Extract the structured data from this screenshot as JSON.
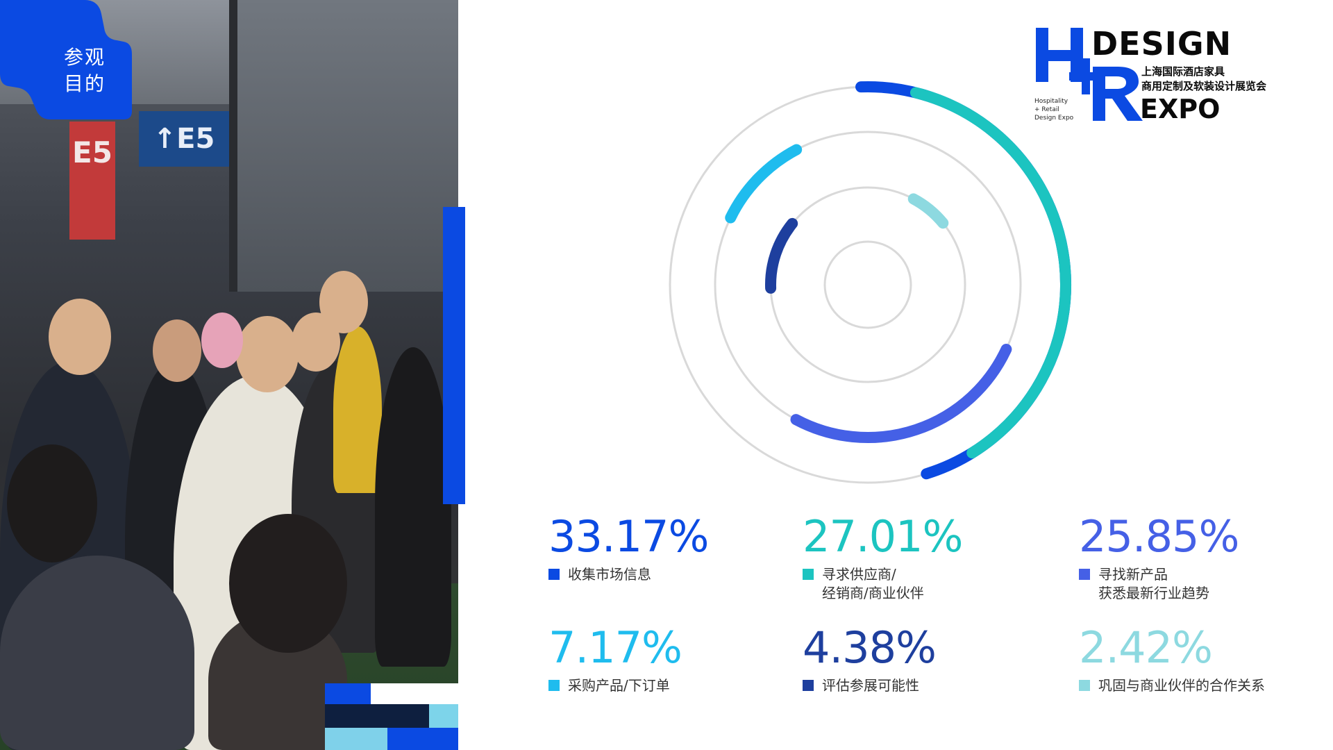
{
  "tag": {
    "line1": "参观",
    "line2": "目的",
    "color": "#0b4ae2"
  },
  "photo": {
    "sign_e5": "E5",
    "sign_arrow": "↑E5"
  },
  "logo": {
    "design": "DESIGN",
    "expo": "EXPO",
    "cn_line1": "上海国际酒店家具",
    "cn_line2": "商用定制及软装设计展览会",
    "en_line1": "Hospitality",
    "en_line2": "+ Retail",
    "en_line3": "Design Expo",
    "h_color": "#0b4ae2",
    "r_color": "#0b4ae2"
  },
  "chart_data": {
    "type": "pie",
    "categories": [
      "收集市场信息",
      "寻求供应商/经销商/商业伙伴",
      "寻找新产品 获悉最新行业趋势",
      "采购产品/下订单",
      "评估参展可能性",
      "巩固与商业伙伴的合作关系"
    ],
    "values": [
      33.17,
      27.01,
      25.85,
      7.17,
      4.38,
      2.42
    ],
    "unit": "%",
    "colors": [
      "#0b4ae2",
      "#1cc4c0",
      "#4560e6",
      "#1fbcee",
      "#1e3f9e",
      "#8dd9e0"
    ],
    "track_color": "#d9d9d9",
    "rings": [
      {
        "ring": "outer",
        "arcs": [
          0,
          1
        ]
      },
      {
        "ring": "second",
        "arcs": [
          3,
          2
        ]
      },
      {
        "ring": "third",
        "arcs": [
          4,
          5
        ]
      },
      {
        "ring": "inner",
        "arcs": []
      }
    ]
  },
  "stats": [
    {
      "value": "33.17%",
      "lines": [
        "收集市场信息"
      ],
      "color": "#0b4ae2"
    },
    {
      "value": "27.01%",
      "lines": [
        "寻求供应商/",
        "经销商/商业伙伴"
      ],
      "color": "#1cc4c0"
    },
    {
      "value": "25.85%",
      "lines": [
        "寻找新产品",
        "获悉最新行业趋势"
      ],
      "color": "#4560e6"
    },
    {
      "value": "7.17%",
      "lines": [
        "采购产品/下订单"
      ],
      "color": "#1fbcee"
    },
    {
      "value": "4.38%",
      "lines": [
        "评估参展可能性"
      ],
      "color": "#1e3f9e"
    },
    {
      "value": "2.42%",
      "lines": [
        "巩固与商业伙伴的合作关系"
      ],
      "color": "#8dd9e0"
    }
  ]
}
